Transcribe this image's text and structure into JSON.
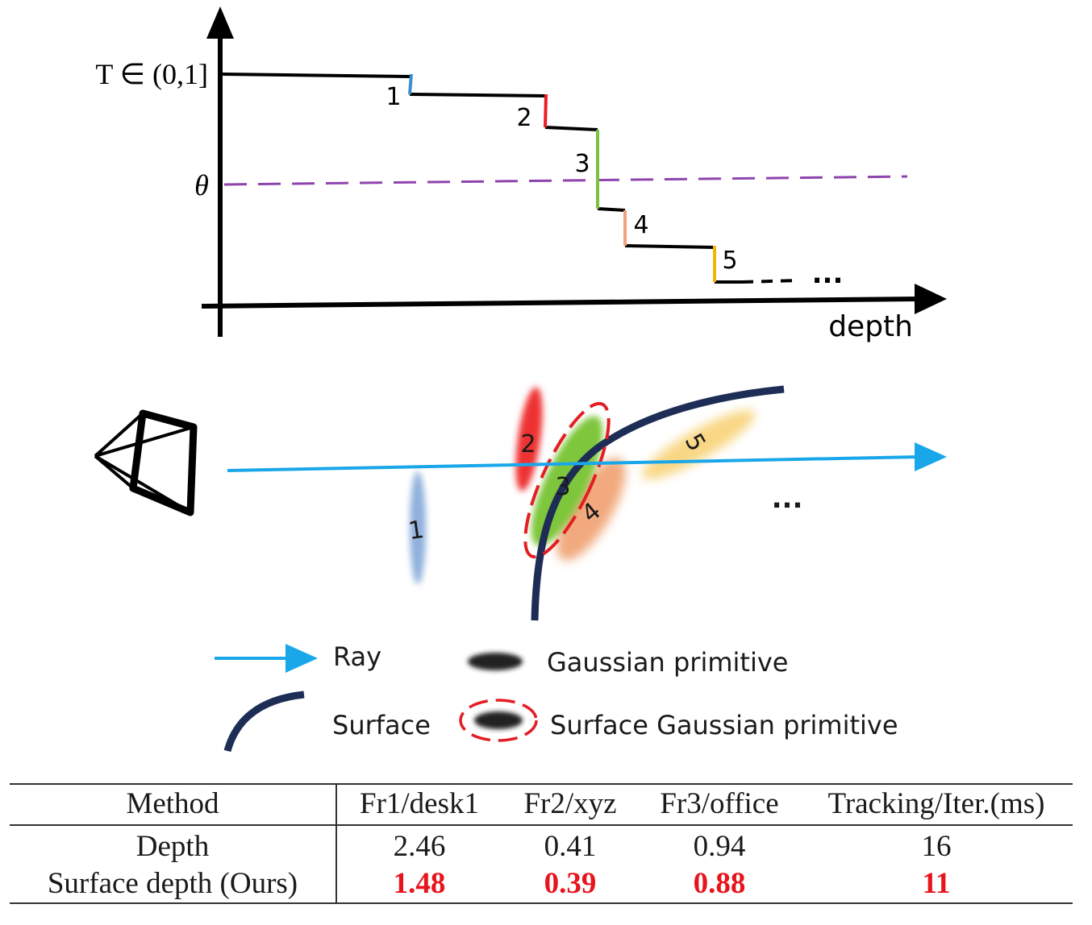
{
  "plot": {
    "y_label": "T ∈ (0,1]",
    "threshold_label": "θ",
    "x_label": "depth",
    "ellipsis": "...",
    "steps": [
      {
        "label": "1",
        "color": "#3b8fd0"
      },
      {
        "label": "2",
        "color": "#ee1c25"
      },
      {
        "label": "3",
        "color": "#7ac142"
      },
      {
        "label": "4",
        "color": "#f4a07c"
      },
      {
        "label": "5",
        "color": "#f2b705"
      }
    ],
    "threshold_color": "#8e44ad"
  },
  "scene": {
    "primitives": [
      {
        "label": "1",
        "color": "#8fb0dc"
      },
      {
        "label": "2",
        "color": "#ee3030"
      },
      {
        "label": "3",
        "color": "#7ec63a"
      },
      {
        "label": "4",
        "color": "#f0a070"
      },
      {
        "label": "5",
        "color": "#f8d070"
      }
    ],
    "ellipsis": "...",
    "ray_color": "#19a7ea",
    "surface_color": "#1e2d55",
    "highlight_color": "#e31e24"
  },
  "legend": {
    "ray": "Ray",
    "gaussian": "Gaussian primitive",
    "surface": "Surface",
    "surface_gaussian": "Surface Gaussian primitive"
  },
  "table": {
    "headers": [
      "Method",
      "Fr1/desk1",
      "Fr2/xyz",
      "Fr3/office",
      "Tracking/Iter.(ms)"
    ],
    "rows": [
      {
        "method": "Depth",
        "values": [
          "2.46",
          "0.41",
          "0.94",
          "16"
        ],
        "best": false
      },
      {
        "method": "Surface depth (Ours)",
        "values": [
          "1.48",
          "0.39",
          "0.88",
          "11"
        ],
        "best": true
      }
    ]
  }
}
